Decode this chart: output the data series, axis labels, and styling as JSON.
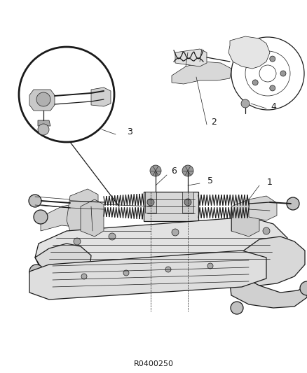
{
  "title": "",
  "part_number": "R0400250",
  "background_color": "#ffffff",
  "line_color": "#1a1a1a",
  "figure_width": 4.38,
  "figure_height": 5.33,
  "dpi": 100,
  "label_fontsize": 9,
  "part_fontsize": 8,
  "annotation_color": "#1a1a1a",
  "lw_thin": 0.5,
  "lw_med": 0.9,
  "lw_thick": 1.4,
  "lw_heavy": 2.0
}
